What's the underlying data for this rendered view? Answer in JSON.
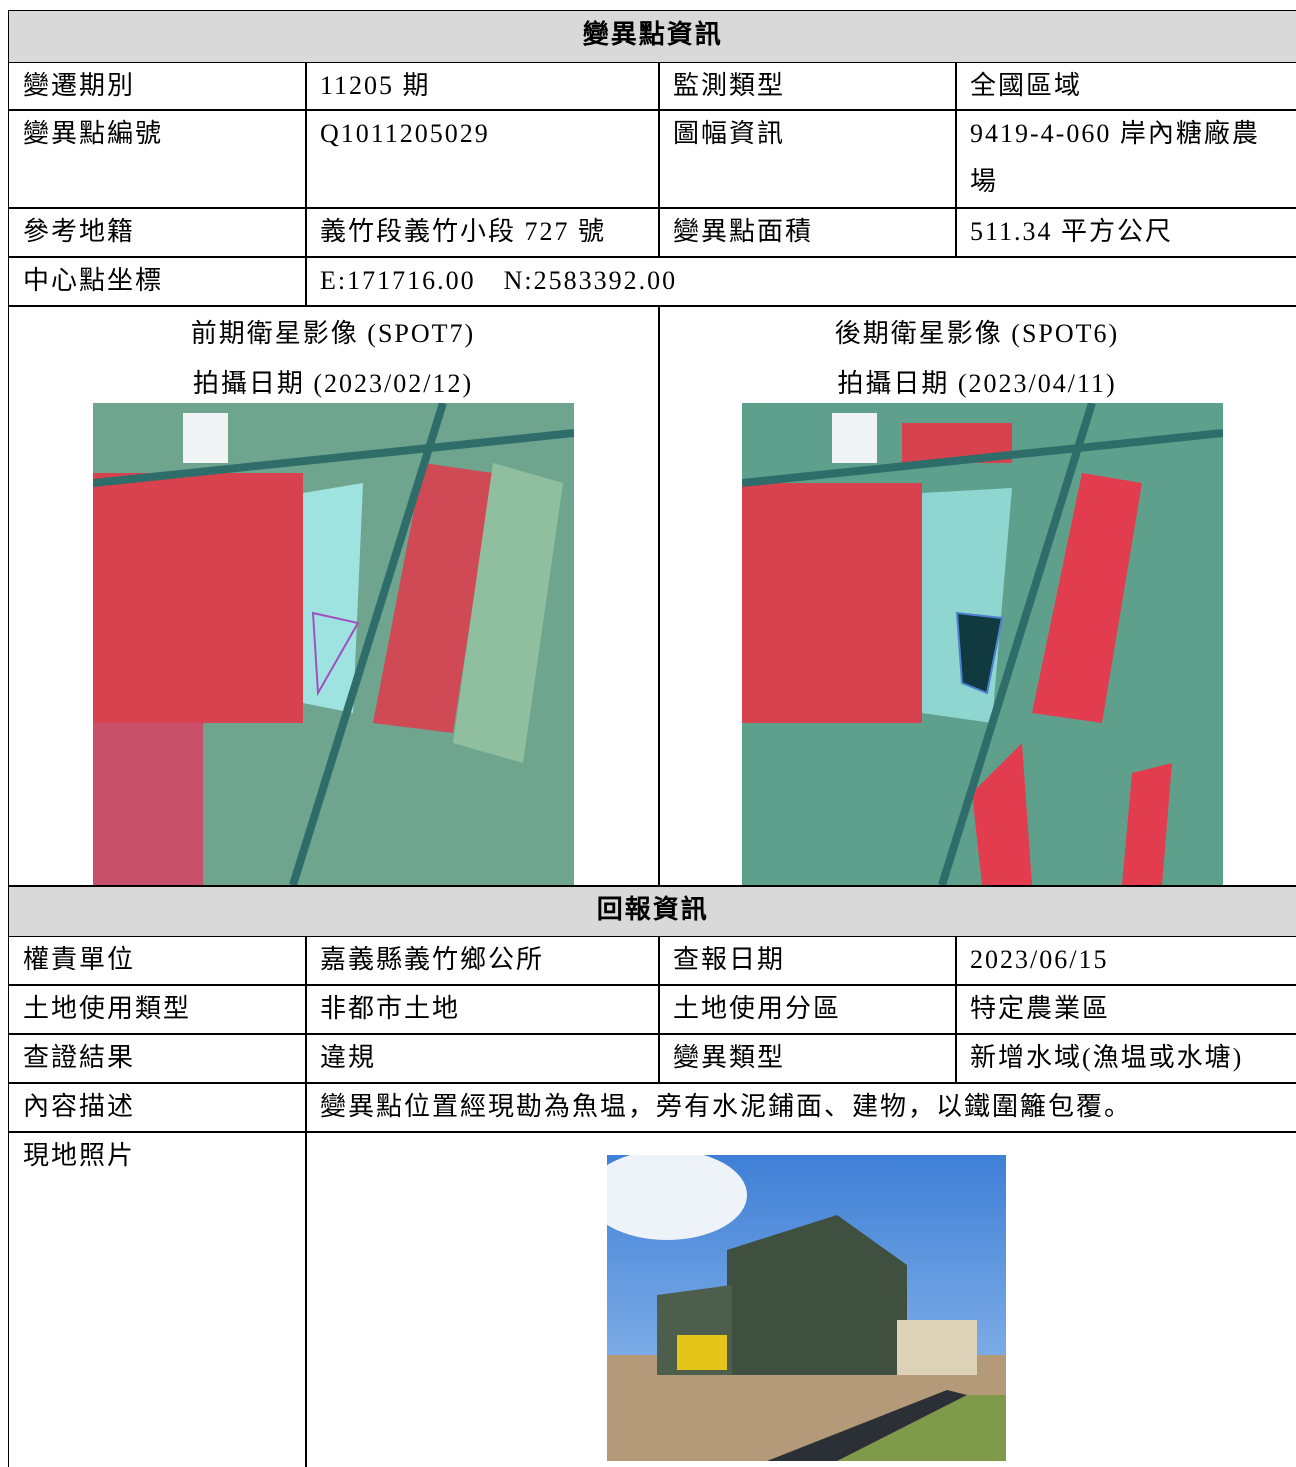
{
  "section1": {
    "title": "變異點資訊",
    "rows": [
      [
        "變遷期別",
        "11205 期",
        "監測類型",
        "全國區域"
      ],
      [
        "變異點編號",
        "Q1011205029",
        "圖幅資訊",
        "9419-4-060 岸內糖廠農場"
      ],
      [
        "參考地籍",
        "義竹段義竹小段 727 號",
        "變異點面積",
        "511.34 平方公尺"
      ],
      [
        "中心點坐標",
        "E:171716.00　N:2583392.00"
      ]
    ],
    "images": [
      {
        "caption": "前期衛星影像 (SPOT7)",
        "date": "拍攝日期 (2023/02/12)"
      },
      {
        "caption": "後期衛星影像 (SPOT6)",
        "date": "拍攝日期 (2023/04/11)"
      }
    ]
  },
  "section2": {
    "title": "回報資訊",
    "rows": [
      [
        "權責單位",
        "嘉義縣義竹鄉公所",
        "查報日期",
        "2023/06/15"
      ],
      [
        "土地使用類型",
        "非都市土地",
        "土地使用分區",
        "特定農業區"
      ],
      [
        "查證結果",
        "違規",
        "變異類型",
        "新增水域(漁塭或水塘)"
      ],
      [
        "內容描述",
        "變異點位置經現勘為魚塭，旁有水泥鋪面、建物，以鐵圍籬包覆。"
      ],
      [
        "現地照片"
      ]
    ]
  }
}
